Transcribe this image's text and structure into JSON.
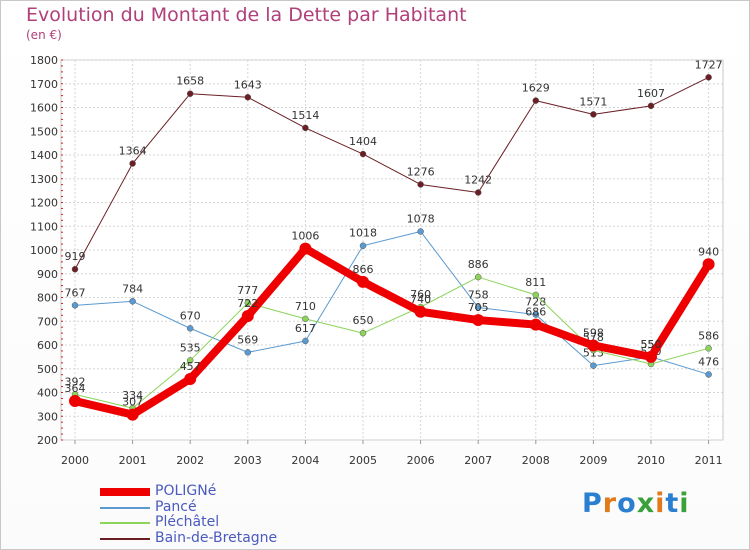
{
  "title": "Evolution du Montant de la Dette par Habitant",
  "subtitle": "(en €)",
  "logo": "Proxiti",
  "chart_data": {
    "type": "line",
    "title": "Evolution du Montant de la Dette par Habitant",
    "subtitle": "(en €)",
    "categories": [
      "2000",
      "2001",
      "2002",
      "2003",
      "2004",
      "2005",
      "2006",
      "2007",
      "2008",
      "2009",
      "2010",
      "2011"
    ],
    "ylim": [
      200,
      1800
    ],
    "yticks": [
      200,
      300,
      400,
      500,
      600,
      700,
      800,
      900,
      1000,
      1100,
      1200,
      1300,
      1400,
      1500,
      1600,
      1700,
      1800
    ],
    "grid": true,
    "legend_position": "bottom-left",
    "series": [
      {
        "name": "Bain-de-Bretagne",
        "color": "#6b1f25",
        "width": 1,
        "values": [
          919,
          1364,
          1658,
          1643,
          1514,
          1404,
          1276,
          1242,
          1629,
          1571,
          1607,
          1727
        ]
      },
      {
        "name": "Pancé",
        "color": "#5a9ad0",
        "width": 1,
        "values": [
          767,
          784,
          670,
          569,
          617,
          1018,
          1078,
          758,
          728,
          513,
          550,
          476
        ]
      },
      {
        "name": "Pléchâtel",
        "color": "#8cd45a",
        "width": 1,
        "values": [
          392,
          334,
          535,
          777,
          710,
          650,
          760,
          886,
          811,
          578,
          520,
          586
        ]
      },
      {
        "name": "POLIGNé",
        "color": "#ee0000",
        "width": 8,
        "values": [
          364,
          307,
          457,
          722,
          1006,
          866,
          740,
          705,
          686,
          598,
          550,
          940
        ]
      }
    ]
  }
}
